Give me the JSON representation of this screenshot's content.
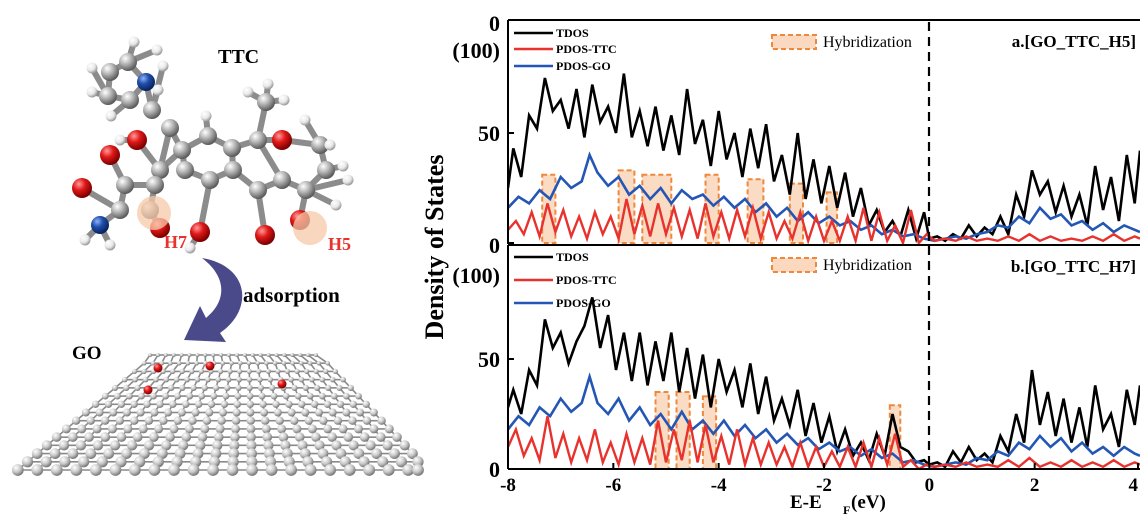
{
  "left_panel": {
    "molecule_label": "TTC",
    "site_h7": "H7",
    "site_h5": "H5",
    "arrow_label": "adsorption",
    "sheet_label": "GO"
  },
  "colors": {
    "tdos": "#000000",
    "pdos_ttc": "#e8322d",
    "pdos_go": "#2456b5",
    "hybridization": "#f0883c",
    "carbon": "#9a9a9a",
    "oxygen": "#e01818",
    "nitrogen": "#1f4fa8",
    "arrow": "#4a4a8a"
  },
  "chart_data": [
    {
      "type": "line",
      "panel_label": "a.[GO_TTC_H5]",
      "xlabel": "E-E",
      "xlabel_sub": "F",
      "xlabel_unit": "(eV)",
      "ylabel": "Density of States",
      "xlim": [
        -8,
        4
      ],
      "ylim": [
        0,
        100
      ],
      "x_ticks": [
        "-8",
        "-6",
        "-4",
        "-2",
        "0",
        "2",
        "4"
      ],
      "y_ticks": [
        "0",
        "50",
        "(100)"
      ],
      "fermi_line": 0,
      "legend": [
        "TDOS",
        "PDOS-TTC",
        "PDOS-GO"
      ],
      "hybridization_label": "Hybridization",
      "series": [
        {
          "name": "TDOS",
          "x": [
            -8,
            -7.9,
            -7.75,
            -7.6,
            -7.45,
            -7.3,
            -7.15,
            -7.0,
            -6.85,
            -6.7,
            -6.55,
            -6.4,
            -6.25,
            -6.1,
            -5.95,
            -5.8,
            -5.65,
            -5.5,
            -5.35,
            -5.2,
            -5.05,
            -4.9,
            -4.75,
            -4.6,
            -4.45,
            -4.3,
            -4.15,
            -4.0,
            -3.85,
            -3.7,
            -3.55,
            -3.4,
            -3.25,
            -3.1,
            -2.95,
            -2.8,
            -2.65,
            -2.5,
            -2.35,
            -2.2,
            -2.05,
            -1.9,
            -1.75,
            -1.6,
            -1.45,
            -1.3,
            -1.15,
            -1.0,
            -0.85,
            -0.7,
            -0.55,
            -0.4,
            -0.25,
            -0.1,
            0.0,
            0.15,
            0.3,
            0.45,
            0.6,
            0.75,
            0.9,
            1.05,
            1.2,
            1.35,
            1.5,
            1.65,
            1.8,
            1.95,
            2.1,
            2.25,
            2.4,
            2.55,
            2.7,
            2.85,
            3.0,
            3.15,
            3.3,
            3.45,
            3.6,
            3.75,
            3.9,
            4.0
          ],
          "y": [
            25,
            43,
            30,
            58,
            52,
            75,
            60,
            65,
            52,
            70,
            48,
            72,
            55,
            62,
            50,
            77,
            48,
            60,
            44,
            62,
            42,
            58,
            40,
            70,
            45,
            56,
            35,
            60,
            38,
            50,
            30,
            52,
            34,
            54,
            28,
            40,
            22,
            50,
            20,
            38,
            18,
            35,
            16,
            32,
            12,
            25,
            8,
            15,
            5,
            10,
            3,
            15,
            2,
            14,
            2,
            3,
            1,
            4,
            2,
            8,
            3,
            7,
            4,
            12,
            4,
            22,
            12,
            33,
            22,
            28,
            14,
            26,
            12,
            22,
            8,
            35,
            15,
            30,
            10,
            40,
            18,
            42
          ]
        },
        {
          "name": "PDOS-TTC",
          "x": [
            -8,
            -7.85,
            -7.7,
            -7.55,
            -7.4,
            -7.25,
            -7.1,
            -6.95,
            -6.8,
            -6.65,
            -6.5,
            -6.35,
            -6.2,
            -6.05,
            -5.9,
            -5.75,
            -5.6,
            -5.45,
            -5.3,
            -5.15,
            -5.0,
            -4.85,
            -4.7,
            -4.55,
            -4.4,
            -4.25,
            -4.1,
            -3.95,
            -3.8,
            -3.65,
            -3.5,
            -3.35,
            -3.2,
            -3.05,
            -2.9,
            -2.75,
            -2.6,
            -2.45,
            -2.3,
            -2.15,
            -2.0,
            -1.85,
            -1.7,
            -1.55,
            -1.4,
            -1.25,
            -1.1,
            -0.95,
            -0.8,
            -0.65,
            -0.5,
            -0.35,
            -0.2,
            -0.05,
            0.1,
            0.3,
            0.5,
            0.7,
            0.9,
            1.1,
            1.3,
            1.5,
            1.7,
            1.9,
            2.1,
            2.3,
            2.5,
            2.7,
            2.9,
            3.1,
            3.3,
            3.5,
            3.7,
            3.9,
            4.0
          ],
          "y": [
            6,
            10,
            4,
            14,
            3,
            18,
            5,
            15,
            3,
            12,
            2,
            14,
            4,
            12,
            2,
            20,
            4,
            17,
            3,
            18,
            4,
            16,
            3,
            15,
            2,
            18,
            3,
            14,
            2,
            15,
            3,
            16,
            2,
            14,
            2,
            10,
            2,
            14,
            1,
            12,
            1,
            10,
            1,
            12,
            1,
            16,
            1,
            14,
            1,
            8,
            0,
            15,
            0,
            4,
            1,
            2,
            1,
            3,
            1,
            2,
            1,
            3,
            1,
            4,
            1,
            3,
            1,
            2,
            1,
            3,
            1,
            4,
            1,
            3,
            2
          ]
        },
        {
          "name": "PDOS-GO",
          "x": [
            -8,
            -7.8,
            -7.6,
            -7.4,
            -7.2,
            -7.0,
            -6.8,
            -6.6,
            -6.45,
            -6.3,
            -6.1,
            -5.9,
            -5.7,
            -5.5,
            -5.3,
            -5.1,
            -4.9,
            -4.7,
            -4.5,
            -4.3,
            -4.1,
            -3.9,
            -3.7,
            -3.5,
            -3.3,
            -3.1,
            -2.9,
            -2.7,
            -2.5,
            -2.3,
            -2.1,
            -1.9,
            -1.7,
            -1.5,
            -1.3,
            -1.1,
            -0.9,
            -0.7,
            -0.5,
            -0.3,
            -0.1,
            0.1,
            0.3,
            0.5,
            0.7,
            0.9,
            1.1,
            1.3,
            1.5,
            1.7,
            1.9,
            2.1,
            2.3,
            2.5,
            2.7,
            2.9,
            3.1,
            3.3,
            3.5,
            3.7,
            3.9,
            4.0
          ],
          "y": [
            16,
            21,
            18,
            24,
            20,
            30,
            25,
            28,
            40,
            32,
            26,
            30,
            22,
            26,
            20,
            25,
            18,
            24,
            20,
            22,
            17,
            21,
            16,
            20,
            14,
            18,
            12,
            16,
            10,
            14,
            9,
            12,
            8,
            10,
            6,
            8,
            4,
            6,
            3,
            4,
            2,
            1,
            2,
            3,
            2,
            4,
            5,
            8,
            7,
            12,
            9,
            16,
            11,
            13,
            8,
            10,
            6,
            9,
            5,
            8,
            6,
            5
          ]
        }
      ],
      "hybridization_regions": [
        [
          -7.35,
          -7.1
        ],
        [
          -5.9,
          -5.6
        ],
        [
          -5.45,
          -4.9
        ],
        [
          -4.25,
          -4.0
        ],
        [
          -3.45,
          -3.15
        ],
        [
          -2.65,
          -2.4
        ],
        [
          -1.95,
          -1.75
        ]
      ]
    },
    {
      "type": "line",
      "panel_label": "b.[GO_TTC_H7]",
      "xlabel": "E-E",
      "xlabel_sub": "F",
      "xlabel_unit": "(eV)",
      "ylabel": "Density of States",
      "xlim": [
        -8,
        4
      ],
      "ylim": [
        0,
        100
      ],
      "x_ticks": [
        "-8",
        "-6",
        "-4",
        "-2",
        "0",
        "2",
        "4"
      ],
      "y_ticks": [
        "0",
        "50",
        "(100)"
      ],
      "fermi_line": 0,
      "legend": [
        "TDOS",
        "PDOS-TTC",
        "PDOS-GO"
      ],
      "hybridization_label": "Hybridization",
      "series": [
        {
          "name": "TDOS",
          "x": [
            -8,
            -7.9,
            -7.75,
            -7.6,
            -7.45,
            -7.3,
            -7.15,
            -7.0,
            -6.85,
            -6.7,
            -6.55,
            -6.4,
            -6.25,
            -6.1,
            -5.95,
            -5.8,
            -5.65,
            -5.5,
            -5.35,
            -5.2,
            -5.05,
            -4.9,
            -4.75,
            -4.6,
            -4.45,
            -4.3,
            -4.15,
            -4.0,
            -3.85,
            -3.7,
            -3.55,
            -3.4,
            -3.25,
            -3.1,
            -2.95,
            -2.8,
            -2.65,
            -2.5,
            -2.35,
            -2.2,
            -2.05,
            -1.9,
            -1.75,
            -1.6,
            -1.45,
            -1.3,
            -1.15,
            -1.0,
            -0.85,
            -0.7,
            -0.55,
            -0.4,
            -0.25,
            -0.1,
            0.0,
            0.15,
            0.3,
            0.45,
            0.6,
            0.75,
            0.9,
            1.05,
            1.2,
            1.35,
            1.5,
            1.65,
            1.8,
            1.95,
            2.1,
            2.25,
            2.4,
            2.55,
            2.7,
            2.85,
            3.0,
            3.15,
            3.3,
            3.45,
            3.6,
            3.75,
            3.9,
            4.0
          ],
          "y": [
            28,
            36,
            25,
            45,
            38,
            68,
            55,
            62,
            48,
            58,
            65,
            78,
            55,
            70,
            45,
            62,
            40,
            62,
            38,
            58,
            40,
            62,
            35,
            55,
            32,
            52,
            28,
            50,
            35,
            45,
            28,
            48,
            25,
            42,
            22,
            32,
            20,
            36,
            15,
            30,
            12,
            24,
            8,
            18,
            6,
            12,
            4,
            16,
            6,
            25,
            10,
            8,
            3,
            4,
            2,
            3,
            1,
            8,
            3,
            10,
            4,
            7,
            3,
            15,
            8,
            25,
            12,
            45,
            20,
            35,
            15,
            32,
            12,
            28,
            10,
            38,
            18,
            25,
            10,
            36,
            20,
            38
          ]
        },
        {
          "name": "PDOS-TTC",
          "x": [
            -8,
            -7.85,
            -7.7,
            -7.55,
            -7.4,
            -7.25,
            -7.1,
            -6.95,
            -6.8,
            -6.65,
            -6.5,
            -6.35,
            -6.2,
            -6.05,
            -5.9,
            -5.75,
            -5.6,
            -5.45,
            -5.3,
            -5.15,
            -5.0,
            -4.85,
            -4.7,
            -4.55,
            -4.4,
            -4.25,
            -4.1,
            -3.95,
            -3.8,
            -3.65,
            -3.5,
            -3.35,
            -3.2,
            -3.05,
            -2.9,
            -2.75,
            -2.6,
            -2.45,
            -2.3,
            -2.15,
            -2.0,
            -1.85,
            -1.7,
            -1.55,
            -1.4,
            -1.25,
            -1.1,
            -0.95,
            -0.8,
            -0.65,
            -0.5,
            -0.35,
            -0.2,
            -0.05,
            0.1,
            0.3,
            0.5,
            0.7,
            0.9,
            1.1,
            1.3,
            1.5,
            1.7,
            1.9,
            2.1,
            2.3,
            2.5,
            2.7,
            2.9,
            3.1,
            3.3,
            3.5,
            3.7,
            3.9,
            4.0
          ],
          "y": [
            10,
            18,
            6,
            14,
            4,
            24,
            5,
            16,
            3,
            14,
            4,
            18,
            3,
            12,
            2,
            16,
            3,
            14,
            2,
            22,
            3,
            18,
            4,
            22,
            3,
            20,
            3,
            15,
            2,
            18,
            2,
            14,
            2,
            12,
            2,
            10,
            1,
            12,
            1,
            10,
            1,
            8,
            1,
            10,
            1,
            12,
            1,
            14,
            2,
            16,
            1,
            4,
            0,
            2,
            1,
            2,
            1,
            3,
            1,
            2,
            1,
            4,
            1,
            5,
            1,
            3,
            1,
            4,
            1,
            3,
            1,
            4,
            1,
            3,
            2
          ]
        },
        {
          "name": "PDOS-GO",
          "x": [
            -8,
            -7.8,
            -7.6,
            -7.4,
            -7.2,
            -7.0,
            -6.8,
            -6.6,
            -6.45,
            -6.3,
            -6.1,
            -5.9,
            -5.7,
            -5.5,
            -5.3,
            -5.1,
            -4.9,
            -4.7,
            -4.5,
            -4.3,
            -4.1,
            -3.9,
            -3.7,
            -3.5,
            -3.3,
            -3.1,
            -2.9,
            -2.7,
            -2.5,
            -2.3,
            -2.1,
            -1.9,
            -1.7,
            -1.5,
            -1.3,
            -1.1,
            -0.9,
            -0.7,
            -0.5,
            -0.3,
            -0.1,
            0.1,
            0.3,
            0.5,
            0.7,
            0.9,
            1.1,
            1.3,
            1.5,
            1.7,
            1.9,
            2.1,
            2.3,
            2.5,
            2.7,
            2.9,
            3.1,
            3.3,
            3.5,
            3.7,
            3.9,
            4.0
          ],
          "y": [
            18,
            24,
            20,
            28,
            24,
            32,
            26,
            30,
            42,
            30,
            25,
            32,
            22,
            28,
            20,
            25,
            18,
            26,
            18,
            22,
            16,
            22,
            15,
            20,
            14,
            18,
            12,
            16,
            11,
            14,
            9,
            12,
            8,
            10,
            6,
            9,
            5,
            7,
            3,
            4,
            2,
            1,
            2,
            3,
            2,
            5,
            4,
            8,
            6,
            12,
            9,
            15,
            10,
            14,
            8,
            12,
            7,
            10,
            6,
            10,
            7,
            6
          ]
        }
      ],
      "hybridization_regions": [
        [
          -5.2,
          -4.95
        ],
        [
          -4.8,
          -4.55
        ],
        [
          -4.3,
          -4.05
        ],
        [
          -0.75,
          -0.55
        ]
      ]
    }
  ]
}
